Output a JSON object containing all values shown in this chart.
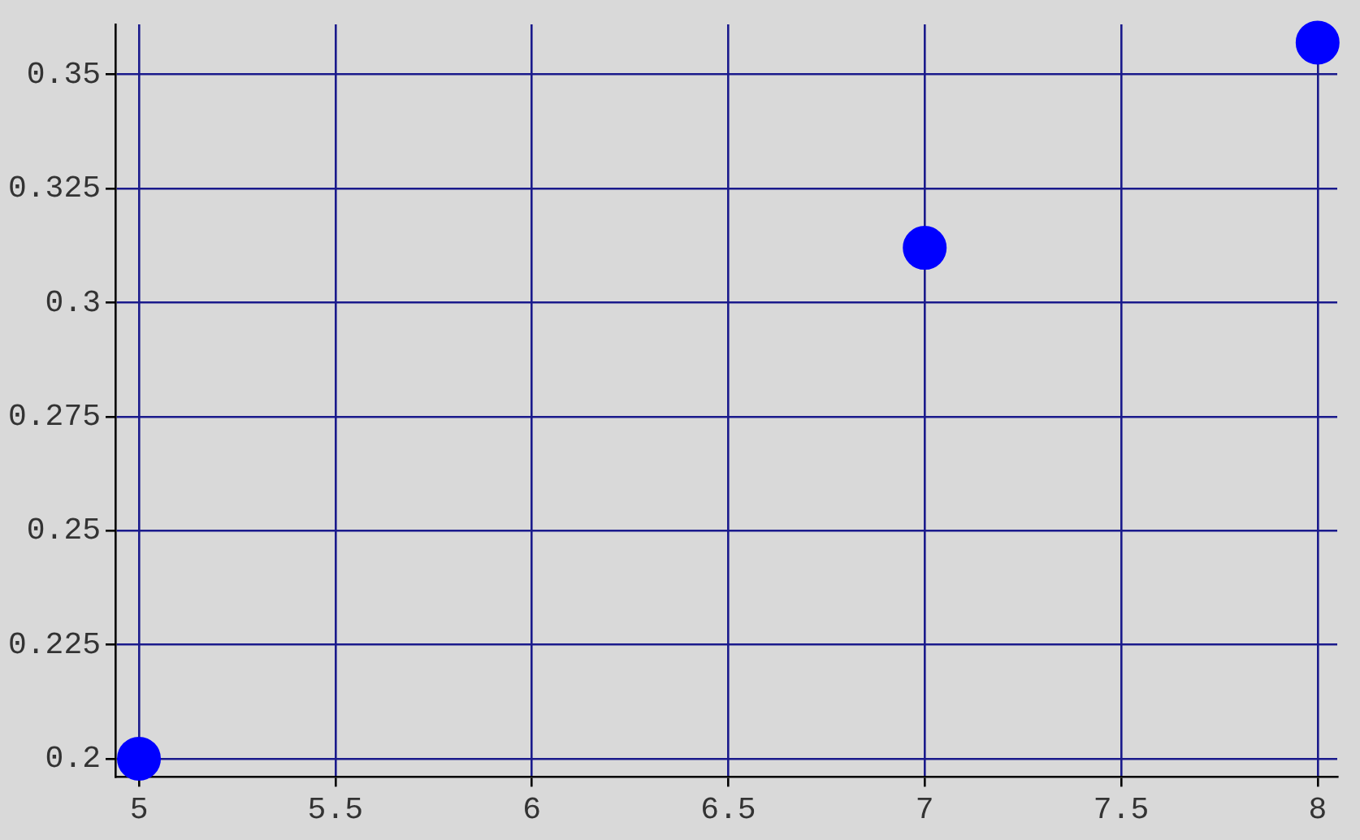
{
  "chart_data": {
    "type": "scatter",
    "x": [
      5,
      7,
      8
    ],
    "series": [
      {
        "color": "#0000ff",
        "values": [
          0.2,
          0.312,
          0.357
        ]
      }
    ],
    "xlim": [
      4.94,
      8.05
    ],
    "xticks": [
      5,
      5.5,
      6,
      6.5,
      7,
      7.5,
      8
    ],
    "ylim": [
      0.196,
      0.361
    ],
    "yticks": [
      0.2,
      0.225,
      0.25,
      0.275,
      0.3,
      0.325,
      0.35
    ],
    "grid": true,
    "legend": false,
    "marker": "circle"
  }
}
